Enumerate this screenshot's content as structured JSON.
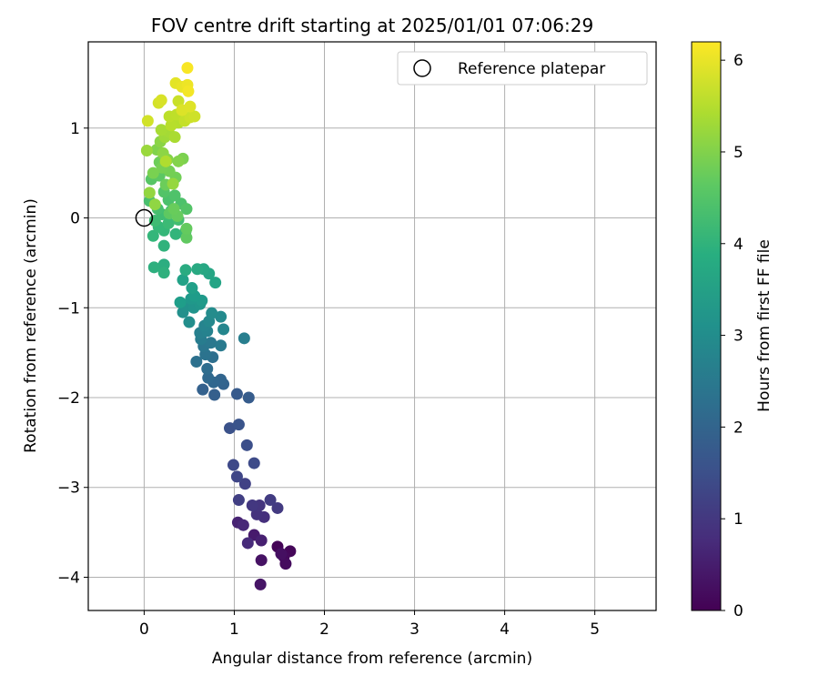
{
  "chart_data": {
    "type": "scatter",
    "title": "FOV centre drift starting at 2025/01/01 07:06:29",
    "xlabel": "Angular distance from reference (arcmin)",
    "ylabel": "Rotation from reference (arcmin)",
    "xlim": [
      -0.62,
      5.68
    ],
    "ylim": [
      -4.37,
      1.96
    ],
    "xticks": [
      0,
      1,
      2,
      3,
      4,
      5
    ],
    "yticks": [
      -4,
      -3,
      -2,
      -1,
      0,
      1
    ],
    "grid": true,
    "legend": {
      "placement": "top-right",
      "entries": [
        "Reference platepar"
      ]
    },
    "reference_point": {
      "name": "Reference platepar",
      "x": 0,
      "y": 0
    },
    "colorbar": {
      "label": "Hours from first FF file",
      "range": [
        0,
        6.2
      ],
      "ticks": [
        0,
        1,
        2,
        3,
        4,
        5,
        6
      ],
      "colormap": "viridis"
    },
    "series": [
      {
        "values": [
          {
            "x": 1.48,
            "y": -3.66,
            "t": 0.05
          },
          {
            "x": 1.62,
            "y": -3.71,
            "t": 0.1
          },
          {
            "x": 1.55,
            "y": -3.77,
            "t": 0.15
          },
          {
            "x": 1.57,
            "y": -3.85,
            "t": 0.2
          },
          {
            "x": 1.52,
            "y": -3.74,
            "t": 0.25
          },
          {
            "x": 1.3,
            "y": -3.81,
            "t": 0.3
          },
          {
            "x": 1.29,
            "y": -4.08,
            "t": 0.35
          },
          {
            "x": 1.22,
            "y": -3.53,
            "t": 0.45
          },
          {
            "x": 1.3,
            "y": -3.59,
            "t": 0.55
          },
          {
            "x": 1.04,
            "y": -3.39,
            "t": 0.6
          },
          {
            "x": 1.1,
            "y": -3.42,
            "t": 0.7
          },
          {
            "x": 1.15,
            "y": -3.62,
            "t": 0.75
          },
          {
            "x": 1.33,
            "y": -3.33,
            "t": 0.85
          },
          {
            "x": 1.25,
            "y": -3.3,
            "t": 0.9
          },
          {
            "x": 1.28,
            "y": -3.2,
            "t": 0.95
          },
          {
            "x": 1.2,
            "y": -3.2,
            "t": 1.0
          },
          {
            "x": 1.48,
            "y": -3.23,
            "t": 1.05
          },
          {
            "x": 1.4,
            "y": -3.14,
            "t": 1.1
          },
          {
            "x": 1.05,
            "y": -3.14,
            "t": 1.15
          },
          {
            "x": 1.12,
            "y": -2.96,
            "t": 1.2
          },
          {
            "x": 1.03,
            "y": -2.88,
            "t": 1.3
          },
          {
            "x": 0.99,
            "y": -2.75,
            "t": 1.35
          },
          {
            "x": 1.22,
            "y": -2.73,
            "t": 1.4
          },
          {
            "x": 1.14,
            "y": -2.53,
            "t": 1.5
          },
          {
            "x": 0.95,
            "y": -2.34,
            "t": 1.55
          },
          {
            "x": 1.05,
            "y": -2.3,
            "t": 1.6
          },
          {
            "x": 1.03,
            "y": -1.96,
            "t": 1.75
          },
          {
            "x": 1.16,
            "y": -2.0,
            "t": 1.8
          },
          {
            "x": 0.78,
            "y": -1.97,
            "t": 1.85
          },
          {
            "x": 0.65,
            "y": -1.91,
            "t": 1.9
          },
          {
            "x": 0.88,
            "y": -1.85,
            "t": 1.95
          },
          {
            "x": 0.85,
            "y": -1.8,
            "t": 2.0
          },
          {
            "x": 0.77,
            "y": -1.83,
            "t": 2.05
          },
          {
            "x": 0.71,
            "y": -1.78,
            "t": 2.1
          },
          {
            "x": 0.7,
            "y": -1.68,
            "t": 2.2
          },
          {
            "x": 0.76,
            "y": -1.55,
            "t": 2.25
          },
          {
            "x": 0.58,
            "y": -1.6,
            "t": 2.3
          },
          {
            "x": 0.68,
            "y": -1.52,
            "t": 2.35
          },
          {
            "x": 0.66,
            "y": -1.43,
            "t": 2.45
          },
          {
            "x": 0.74,
            "y": -1.39,
            "t": 2.5
          },
          {
            "x": 0.85,
            "y": -1.42,
            "t": 2.55
          },
          {
            "x": 0.63,
            "y": -1.35,
            "t": 2.6
          },
          {
            "x": 1.11,
            "y": -1.34,
            "t": 2.65
          },
          {
            "x": 0.62,
            "y": -1.28,
            "t": 2.7
          },
          {
            "x": 0.7,
            "y": -1.26,
            "t": 2.75
          },
          {
            "x": 0.67,
            "y": -1.2,
            "t": 2.8
          },
          {
            "x": 0.88,
            "y": -1.24,
            "t": 2.85
          },
          {
            "x": 0.72,
            "y": -1.15,
            "t": 2.9
          },
          {
            "x": 0.85,
            "y": -1.1,
            "t": 2.95
          },
          {
            "x": 0.75,
            "y": -1.06,
            "t": 3.0
          },
          {
            "x": 0.5,
            "y": -1.16,
            "t": 3.05
          },
          {
            "x": 0.43,
            "y": -1.05,
            "t": 3.1
          },
          {
            "x": 0.47,
            "y": -0.98,
            "t": 3.15
          },
          {
            "x": 0.55,
            "y": -1.0,
            "t": 3.2
          },
          {
            "x": 0.62,
            "y": -0.96,
            "t": 3.25
          },
          {
            "x": 0.52,
            "y": -0.9,
            "t": 3.3
          },
          {
            "x": 0.64,
            "y": -0.92,
            "t": 3.35
          },
          {
            "x": 0.56,
            "y": -0.87,
            "t": 3.4
          },
          {
            "x": 0.4,
            "y": -0.94,
            "t": 3.45
          },
          {
            "x": 0.53,
            "y": -0.78,
            "t": 3.5
          },
          {
            "x": 0.43,
            "y": -0.69,
            "t": 3.55
          },
          {
            "x": 0.79,
            "y": -0.72,
            "t": 3.6
          },
          {
            "x": 0.72,
            "y": -0.62,
            "t": 3.65
          },
          {
            "x": 0.66,
            "y": -0.57,
            "t": 3.7
          },
          {
            "x": 0.59,
            "y": -0.57,
            "t": 3.75
          },
          {
            "x": 0.46,
            "y": -0.58,
            "t": 3.8
          },
          {
            "x": 0.22,
            "y": -0.52,
            "t": 3.85
          },
          {
            "x": 0.11,
            "y": -0.55,
            "t": 3.9
          },
          {
            "x": 0.22,
            "y": -0.61,
            "t": 3.95
          },
          {
            "x": 0.22,
            "y": -0.31,
            "t": 4.0
          },
          {
            "x": 0.35,
            "y": -0.18,
            "t": 4.05
          },
          {
            "x": 0.1,
            "y": -0.2,
            "t": 4.1
          },
          {
            "x": 0.22,
            "y": -0.14,
            "t": 4.12
          },
          {
            "x": 0.16,
            "y": -0.1,
            "t": 4.15
          },
          {
            "x": 0.46,
            "y": -0.15,
            "t": 4.2
          },
          {
            "x": 0.27,
            "y": -0.06,
            "t": 4.22
          },
          {
            "x": 0.12,
            "y": -0.03,
            "t": 4.25
          },
          {
            "x": 0.2,
            "y": 0.04,
            "t": 4.27
          },
          {
            "x": 0.38,
            "y": -0.02,
            "t": 4.3
          },
          {
            "x": 0.3,
            "y": 0.08,
            "t": 4.32
          },
          {
            "x": 0.15,
            "y": 0.1,
            "t": 4.35
          },
          {
            "x": 0.06,
            "y": 0.19,
            "t": 4.37
          },
          {
            "x": 0.27,
            "y": 0.2,
            "t": 4.4
          },
          {
            "x": 0.41,
            "y": 0.16,
            "t": 4.42
          },
          {
            "x": 0.34,
            "y": 0.25,
            "t": 4.45
          },
          {
            "x": 0.22,
            "y": 0.29,
            "t": 4.48
          },
          {
            "x": 0.47,
            "y": 0.1,
            "t": 4.5
          },
          {
            "x": 0.08,
            "y": 0.43,
            "t": 4.55
          },
          {
            "x": 0.17,
            "y": 0.47,
            "t": 4.6
          },
          {
            "x": 0.28,
            "y": 0.05,
            "t": 4.63
          },
          {
            "x": 0.47,
            "y": -0.22,
            "t": 4.65
          },
          {
            "x": 0.47,
            "y": -0.12,
            "t": 4.7
          },
          {
            "x": 0.37,
            "y": 0.02,
            "t": 4.72
          },
          {
            "x": 0.33,
            "y": 0.1,
            "t": 4.75
          },
          {
            "x": 0.24,
            "y": 0.37,
            "t": 4.78
          },
          {
            "x": 0.17,
            "y": 0.62,
            "t": 4.8
          },
          {
            "x": 0.35,
            "y": 0.45,
            "t": 4.85
          },
          {
            "x": 0.28,
            "y": 0.52,
            "t": 4.88
          },
          {
            "x": 0.2,
            "y": 0.56,
            "t": 4.9
          },
          {
            "x": 0.1,
            "y": 0.5,
            "t": 4.93
          },
          {
            "x": 0.43,
            "y": 0.66,
            "t": 4.95
          },
          {
            "x": 0.14,
            "y": 0.76,
            "t": 5.0
          },
          {
            "x": 0.38,
            "y": 0.63,
            "t": 5.03
          },
          {
            "x": 0.26,
            "y": 0.65,
            "t": 5.05
          },
          {
            "x": 0.18,
            "y": 0.85,
            "t": 5.1
          },
          {
            "x": 0.21,
            "y": 0.72,
            "t": 5.12
          },
          {
            "x": 0.12,
            "y": 0.15,
            "t": 5.15
          },
          {
            "x": 0.06,
            "y": 0.28,
            "t": 5.18
          },
          {
            "x": 0.32,
            "y": 0.38,
            "t": 5.2
          },
          {
            "x": 0.03,
            "y": 0.75,
            "t": 5.25
          },
          {
            "x": 0.23,
            "y": 0.9,
            "t": 5.3
          },
          {
            "x": 0.27,
            "y": 0.96,
            "t": 5.35
          },
          {
            "x": 0.19,
            "y": 0.98,
            "t": 5.38
          },
          {
            "x": 0.34,
            "y": 0.9,
            "t": 5.4
          },
          {
            "x": 0.24,
            "y": 0.63,
            "t": 5.45
          },
          {
            "x": 0.38,
            "y": 1.06,
            "t": 5.5
          },
          {
            "x": 0.3,
            "y": 1.03,
            "t": 5.53
          },
          {
            "x": 0.28,
            "y": 1.13,
            "t": 5.58
          },
          {
            "x": 0.36,
            "y": 1.15,
            "t": 5.6
          },
          {
            "x": 0.45,
            "y": 1.08,
            "t": 5.65
          },
          {
            "x": 0.38,
            "y": 1.3,
            "t": 5.7
          },
          {
            "x": 0.51,
            "y": 1.12,
            "t": 5.72
          },
          {
            "x": 0.56,
            "y": 1.13,
            "t": 5.75
          },
          {
            "x": 0.04,
            "y": 1.08,
            "t": 5.78
          },
          {
            "x": 0.16,
            "y": 1.28,
            "t": 5.8
          },
          {
            "x": 0.19,
            "y": 1.31,
            "t": 5.85
          },
          {
            "x": 0.42,
            "y": 1.2,
            "t": 5.88
          },
          {
            "x": 0.51,
            "y": 1.24,
            "t": 5.9
          },
          {
            "x": 0.35,
            "y": 1.5,
            "t": 5.95
          },
          {
            "x": 0.42,
            "y": 1.46,
            "t": 6.0
          },
          {
            "x": 0.48,
            "y": 1.48,
            "t": 6.05
          },
          {
            "x": 0.49,
            "y": 1.41,
            "t": 6.1
          },
          {
            "x": 0.48,
            "y": 1.67,
            "t": 6.15
          }
        ]
      }
    ]
  }
}
